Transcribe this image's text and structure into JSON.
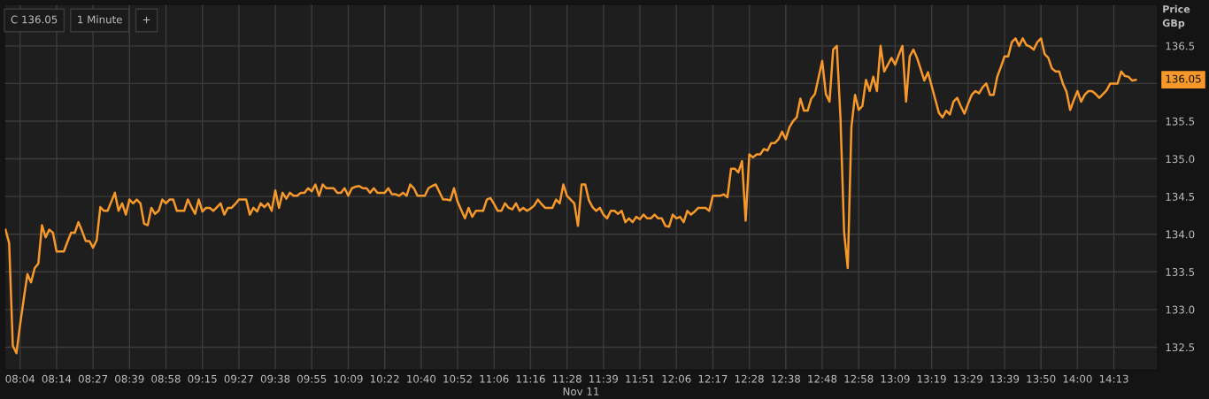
{
  "chart_data": {
    "type": "line",
    "xlabel": "Nov 11",
    "ylabel": "Price\nGBp",
    "annotations": [
      "C 136.05",
      "1 Minute",
      "+",
      "136.05"
    ],
    "ylim": [
      132.2,
      137.05
    ],
    "yticks": [
      {
        "value": 132.5,
        "label": "132.5"
      },
      {
        "value": 133,
        "label": "133.0"
      },
      {
        "value": 133.5,
        "label": "133.5"
      },
      {
        "value": 134,
        "label": "134.0"
      },
      {
        "value": 134.5,
        "label": "134.5"
      },
      {
        "value": 135,
        "label": "135.0"
      },
      {
        "value": 135.5,
        "label": "135.5"
      },
      {
        "value": 136,
        "label": null
      },
      {
        "value": 136.5,
        "label": "136.5"
      }
    ],
    "grid": true,
    "categories": [
      null,
      null,
      null,
      null,
      "08:04",
      null,
      null,
      null,
      null,
      null,
      null,
      null,
      null,
      null,
      "08:14",
      null,
      null,
      null,
      null,
      null,
      null,
      null,
      null,
      null,
      "08:27",
      null,
      null,
      null,
      null,
      null,
      null,
      null,
      null,
      null,
      "08:39",
      null,
      null,
      null,
      null,
      null,
      null,
      null,
      null,
      null,
      "08:58",
      null,
      null,
      null,
      null,
      null,
      null,
      null,
      null,
      null,
      "09:15",
      null,
      null,
      null,
      null,
      null,
      null,
      null,
      null,
      null,
      "09:27",
      null,
      null,
      null,
      null,
      null,
      null,
      null,
      null,
      null,
      "09:38",
      null,
      null,
      null,
      null,
      null,
      null,
      null,
      null,
      null,
      "09:55",
      null,
      null,
      null,
      null,
      null,
      null,
      null,
      null,
      null,
      "10:09",
      null,
      null,
      null,
      null,
      null,
      null,
      null,
      null,
      null,
      "10:22",
      null,
      null,
      null,
      null,
      null,
      null,
      null,
      null,
      null,
      "10:40",
      null,
      null,
      null,
      null,
      null,
      null,
      null,
      null,
      null,
      "10:52",
      null,
      null,
      null,
      null,
      null,
      null,
      null,
      null,
      null,
      "11:06",
      null,
      null,
      null,
      null,
      null,
      null,
      null,
      null,
      null,
      "11:16",
      null,
      null,
      null,
      null,
      null,
      null,
      null,
      null,
      null,
      "11:28",
      null,
      null,
      null,
      null,
      null,
      null,
      null,
      null,
      null,
      "11:39",
      null,
      null,
      null,
      null,
      null,
      null,
      null,
      null,
      null,
      "11:51",
      null,
      null,
      null,
      null,
      null,
      null,
      null,
      null,
      null,
      "12:06",
      null,
      null,
      null,
      null,
      null,
      null,
      null,
      null,
      null,
      "12:17",
      null,
      null,
      null,
      null,
      null,
      null,
      null,
      null,
      null,
      "12:28",
      null,
      null,
      null,
      null,
      null,
      null,
      null,
      null,
      null,
      "12:38",
      null,
      null,
      null,
      null,
      null,
      null,
      null,
      null,
      null,
      "12:48",
      null,
      null,
      null,
      null,
      null,
      null,
      null,
      null,
      null,
      "12:58",
      null,
      null,
      null,
      null,
      null,
      null,
      null,
      null,
      null,
      "13:09",
      null,
      null,
      null,
      null,
      null,
      null,
      null,
      null,
      null,
      "13:19",
      null,
      null,
      null,
      null,
      null,
      null,
      null,
      null,
      null,
      "13:29",
      null,
      null,
      null,
      null,
      null,
      null,
      null,
      null,
      null,
      "13:39",
      null,
      null,
      null,
      null,
      null,
      null,
      null,
      null,
      null,
      "13:50",
      null,
      null,
      null,
      null,
      null,
      null,
      null,
      null,
      null,
      "14:00",
      null,
      null,
      null,
      null,
      null,
      null,
      null,
      null,
      null,
      "14:13",
      null,
      null,
      null,
      null,
      null,
      null
    ],
    "series": [
      {
        "color": "#f7982a",
        "values": [
          134.06,
          133.88,
          132.52,
          132.42,
          132.8,
          133.14,
          133.47,
          133.36,
          133.55,
          133.61,
          134.12,
          133.96,
          134.06,
          134.02,
          133.77,
          133.77,
          133.77,
          133.9,
          134.02,
          134.02,
          134.16,
          134.04,
          133.91,
          133.91,
          133.82,
          133.92,
          134.36,
          134.31,
          134.31,
          134.43,
          134.55,
          134.31,
          134.41,
          134.26,
          134.46,
          134.41,
          134.46,
          134.41,
          134.14,
          134.12,
          134.35,
          134.27,
          134.31,
          134.46,
          134.41,
          134.46,
          134.46,
          134.31,
          134.31,
          134.31,
          134.46,
          134.36,
          134.27,
          134.46,
          134.3,
          134.35,
          134.35,
          134.31,
          134.36,
          134.41,
          134.26,
          134.35,
          134.35,
          134.4,
          134.46,
          134.46,
          134.46,
          134.26,
          134.35,
          134.3,
          134.41,
          134.36,
          134.41,
          134.31,
          134.58,
          134.35,
          134.55,
          134.47,
          134.55,
          134.51,
          134.51,
          134.55,
          134.55,
          134.61,
          134.57,
          134.66,
          134.51,
          134.66,
          134.61,
          134.61,
          134.61,
          134.55,
          134.55,
          134.61,
          134.51,
          134.61,
          134.63,
          134.64,
          134.61,
          134.61,
          134.55,
          134.61,
          134.55,
          134.55,
          134.55,
          134.61,
          134.53,
          134.53,
          134.51,
          134.55,
          134.51,
          134.66,
          134.61,
          134.51,
          134.51,
          134.51,
          134.61,
          134.64,
          134.66,
          134.56,
          134.46,
          134.46,
          134.45,
          134.61,
          134.43,
          134.32,
          134.21,
          134.35,
          134.23,
          134.31,
          134.31,
          134.31,
          134.46,
          134.48,
          134.4,
          134.31,
          134.31,
          134.41,
          134.35,
          134.33,
          134.41,
          134.31,
          134.35,
          134.31,
          134.34,
          134.38,
          134.46,
          134.4,
          134.35,
          134.35,
          134.35,
          134.46,
          134.41,
          134.66,
          134.51,
          134.46,
          134.41,
          134.11,
          134.66,
          134.66,
          134.45,
          134.36,
          134.31,
          134.35,
          134.26,
          134.21,
          134.31,
          134.31,
          134.27,
          134.31,
          134.16,
          134.21,
          134.16,
          134.23,
          134.2,
          134.26,
          134.21,
          134.21,
          134.26,
          134.21,
          134.21,
          134.11,
          134.1,
          134.26,
          134.21,
          134.23,
          134.16,
          134.31,
          134.26,
          134.3,
          134.35,
          134.35,
          134.35,
          134.31,
          134.51,
          134.51,
          134.51,
          134.53,
          134.49,
          134.87,
          134.87,
          134.82,
          134.97,
          134.18,
          135.06,
          135.02,
          135.06,
          135.06,
          135.13,
          135.11,
          135.21,
          135.21,
          135.26,
          135.36,
          135.26,
          135.42,
          135.5,
          135.55,
          135.8,
          135.64,
          135.64,
          135.8,
          135.86,
          136.08,
          136.3,
          135.86,
          135.76,
          136.45,
          136.5,
          135.55,
          134.03,
          133.55,
          135.42,
          135.85,
          135.65,
          135.7,
          136.05,
          135.9,
          136.09,
          135.9,
          136.5,
          136.16,
          136.25,
          136.34,
          136.25,
          136.38,
          136.5,
          135.76,
          136.36,
          136.45,
          136.34,
          136.19,
          136.04,
          136.15,
          135.97,
          135.79,
          135.61,
          135.55,
          135.64,
          135.59,
          135.76,
          135.81,
          135.7,
          135.6,
          135.73,
          135.85,
          135.9,
          135.87,
          135.95,
          136.0,
          135.85,
          135.85,
          136.09,
          136.22,
          136.36,
          136.36,
          136.55,
          136.6,
          136.5,
          136.6,
          136.51,
          136.49,
          136.45,
          136.55,
          136.6,
          136.39,
          136.34,
          136.2,
          136.16,
          136.16,
          136.0,
          135.89,
          135.65,
          135.78,
          135.9,
          135.76,
          135.85,
          135.9,
          135.9,
          135.86,
          135.81,
          135.86,
          135.91,
          136.0,
          136.0,
          136.0,
          136.16,
          136.1,
          136.09,
          136.04,
          136.05
        ]
      }
    ]
  }
}
